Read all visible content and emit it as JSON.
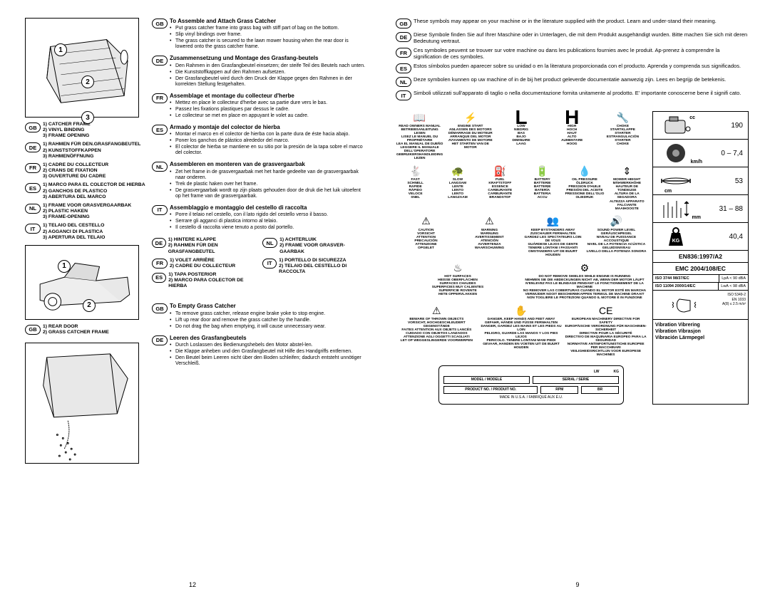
{
  "left": {
    "diagram1_nums": [
      "1",
      "2",
      "3"
    ],
    "parts": {
      "gb": [
        "1) CATCHER FRAME",
        "2) VINYL BINDING",
        "3) FRAME OPENING"
      ],
      "de": [
        "1) RAHMEN FÜR DEN.GRASFANGBEUTEL",
        "2) KUNSTSTOFFKAPPEN",
        "3) RAHMENÖFFNUNG"
      ],
      "fr": [
        "1) CADRE DU COLLECTEUR",
        "2) CRANS DE FIXATION",
        "3) OUVERTURE DU CADRE"
      ],
      "es": [
        "1) MARCO PARA EL COLECTOR DE HIERBA",
        "2) GANCHOS DE PLASTICO",
        "3) ABERTURA DEL MARCO"
      ],
      "nl": [
        "1) FRAME VOOR GRASVERGAARBAK",
        "2) PLASTIC HAKEN",
        "3) FRAME-OPENING"
      ],
      "it": [
        "1) TELAIO DEL CESTELLO",
        "2) AGGANCI DI PLASTICA",
        "3) APERTURA DEL TELAIO"
      ]
    },
    "diagram2_nums": [
      "1",
      "2"
    ],
    "parts2": {
      "gb": [
        "1) REAR DOOR",
        "2) GRASS CATCHER FRAME"
      ],
      "de": [
        "1) HINTERE KLAPPE",
        "2) RAHMEN FÜR DEN GRASFANGBEUTEL"
      ],
      "fr": [
        "1) VOLET ARRIÈRE",
        "2) CADRE DU COLLECTEUR"
      ],
      "es": [
        "1) TAPA POSTERIOR",
        "2) MARCO PARA COLECTOR DE HIERBA"
      ],
      "nl": [
        "1) ACHTERLUIK",
        "2) FRAME VOOR GRASVER-GAARBAK"
      ],
      "it": [
        "1) PORTELLO DI SICUREZZA",
        "2) TELAIO DEL CESTELLO DI RACCOLTA"
      ]
    },
    "assemble": {
      "gb": {
        "title": "To Assemble and Attach Grass Catcher",
        "b": [
          "Put grass catcher frame into grass bag with stiff part of bag on the bottom.",
          "Slip vinyl bindings over frame.",
          "The grass catcher is secured to the lawn mower housing when the rear door is lowered onto the grass catcher frame."
        ]
      },
      "de": {
        "title": "Zusammensetzung und Montage des Grasfang-beutels",
        "b": [
          "Den Rahmen in den Grasfangbeutel einsetzen; der steife Teil des Beutels nach unten.",
          "Die Kunststoffkappen auf den Rahmen aufsetzen.",
          "Der Grasfangbeutel wird durch den Druck der Klappe gegen den Rahmen in der korrekten Stellung festgehalten."
        ]
      },
      "fr": {
        "title": "Assemblage et montage du collecteur d'herbe",
        "b": [
          "Mettez en place le collecteur d'herbe avec sa partie dure vers le bas.",
          "Passez les fixations plastiques par dessus le cadre.",
          "Le collecteur se met en place en appuyant le volet au cadre."
        ]
      },
      "es": {
        "title": "Armado y montaje del colector de hierba",
        "b": [
          "Montar el marco en el colector de hierba con la parte dura de éste hacia abajo.",
          "Poner los ganchos de plástico alrededor del marco.",
          "El colector de hierba se mantiene en su sitio por la presión de la tapa sobre el marco del colector."
        ]
      },
      "nl": {
        "title": "Assembleren en monteren van de grasvergaarbak",
        "b": [
          "Zet het frame in de grasvergaarbak met het harde gedeelte van de grasvergaarbak naar onderen.",
          "Trek de plastic haken over het frame.",
          "De grasvergaarbak wordt op zijn plaats gehouden door de druk die het luik uitoefent op het frame van de grasvergaarbak."
        ]
      },
      "it": {
        "title": "Assemblaggio e montaggio del cestello di raccolta",
        "b": [
          "Porre il telaio nel cestello, con il lato rigido del cestello verso il basso.",
          "Serrare gli agganci di plastica intorno al telaio.",
          "Il cestello di raccolta viene tenuto a posto dal portello."
        ]
      }
    },
    "empty": {
      "gb": {
        "title": "To Empty Grass Catcher",
        "b": [
          "To remove grass catcher, release engine brake yoke to stop engine.",
          "Lift up rear door and remove the grass catcher by the handle.",
          "Do not drag the bag when emptying, it will cause unnecessary wear."
        ]
      },
      "de": {
        "title": "Leeren des Grasfangbeutels",
        "b": [
          "Durch Loslassen des Bedienungshebels den Motor abstel-len.",
          "Die Klappe anheben und den Grasfangbeutel mit Hilfe des Handgriffs entfernen.",
          "Den Beutel beim Leeren nicht über den Boden schleifen; dadurch entsteht unnötiger Verschleiß."
        ]
      }
    },
    "diagram3_present": true,
    "page_num": "12"
  },
  "right": {
    "intro": {
      "gb": "These symbols may appear on your machine or in the literature supplied with the product. Learn and under-stand their meaning.",
      "de": "Diese Symbole finden Sie auf Ihrer Maschine oder in Unterlagen, die mit dem Produkt ausgehändigt wurden. Bitte machen Sie sich mit deren Bedeutung vertraut.",
      "fr": "Ces symboles peuvent se trouver sur votre machine ou dans les publications fournies avec le produit. Ap-prenez à comprendre la signification de ces symboles.",
      "es": "Estos símbolos pueden aparecer sobre su unidad o en la literatura proporcionada con el producto. Aprenda y comprenda sus significados.",
      "nl": "Deze symbolen kunnen op uw machine of in de bij het product geleverde documentatie aanwezig zijn. Lees en begrijp de betekenis.",
      "it": "Simboli utilizzati sull'apparato di taglio o nella documentazione fornita unitamente al prodotto. E' importante conoscerne bene il signifi cato."
    },
    "sym_row1": [
      {
        "icon": "📖",
        "l": [
          "READ OWNERS MANUAL",
          "BETRIEBSANLEITUNG LESEN",
          "LISEZ LE MANUEL DU PROPRIÉTAIRE",
          "LEA EL MANUAL DE DUEÑO",
          "LEGGERE IL MANUALE DELL'OPERATORE",
          "GEBRUIKERSHANDLEIDING LEZEN"
        ]
      },
      {
        "icon": "⚡",
        "l": [
          "ENGINE START",
          "ANLASSEN DES MOTORS",
          "DÉMARRAGE DU MOTEUR",
          "ARRANQUE DEL MOTOR",
          "AVVIAMENTO DE MOTORE",
          "HET STARTEN VAN DE MOTOR"
        ]
      },
      {
        "icon": "L",
        "big": true,
        "l": [
          "LOW",
          "NIEDRIG",
          "BAS",
          "BAJO",
          "DIMINUIRE",
          "LAAG"
        ]
      },
      {
        "icon": "H",
        "big": true,
        "l": [
          "HIGH",
          "HOCH",
          "HAUT",
          "ALTO",
          "AUMENTARE",
          "HOOG"
        ]
      },
      {
        "icon": "🔧",
        "l": [
          "CHOKE",
          "STARTKLAPPE",
          "STARTER",
          "ESTRANGULACIÓN",
          "STARTER",
          "CHOKE"
        ]
      }
    ],
    "sym_row2": [
      {
        "icon": "🐇",
        "l": [
          "FAST",
          "SCHNELL",
          "RAPIDE",
          "RÁPIDO",
          "VELOCE",
          "SNEL"
        ]
      },
      {
        "icon": "🐢",
        "l": [
          "SLOW",
          "LANGSAM",
          "LENTE",
          "LENTO",
          "LENTO",
          "LANGZAAM"
        ]
      },
      {
        "icon": "⛽",
        "l": [
          "FUEL",
          "KRAFTSTOFF",
          "ESSENCE",
          "CARBURANTE",
          "CARBURANTE",
          "BRANDSTOF"
        ]
      },
      {
        "icon": "🔋",
        "l": [
          "BATTERY",
          "BATTERIE",
          "BATTERIE",
          "BATERÍA",
          "BATTERIA",
          "ACCU"
        ]
      },
      {
        "icon": "💧",
        "l": [
          "OIL PRESSURE",
          "ÖLDRUCK",
          "PRESSION D'HUILE",
          "PRESIÓN DEL ACEITE",
          "PRESSIONE DELL'OLIO",
          "OLIEDRUK"
        ]
      },
      {
        "icon": "⇕",
        "l": [
          "MOWER HEIGHT",
          "MÄHWERKHÖHE",
          "HAUTEUR DE TONDEUSE",
          "ALTURA DE LA SEGADORA",
          "ALTEZZA APPARATO",
          "FALCIANTE MAAIHOOGTE"
        ]
      }
    ],
    "sym_row3": [
      {
        "icon": "⚠",
        "l": [
          "CAUTION",
          "VORSICHT",
          "ATTENTION",
          "PRECAUCIÓN",
          "ATTENZIONE",
          "OPGELET"
        ]
      },
      {
        "icon": "⚠",
        "l": [
          "WARNING",
          "WARNUNG",
          "AVERTISSEMENT",
          "ATENCIÓN",
          "AVVERTENZA",
          "WAARSCHUWING"
        ]
      },
      {
        "icon": "👥",
        "l": [
          "KEEP BYSTANDERS AWAY",
          "ZUSCHAUER FERNHALTEN",
          "GARDEZ LES SPECTATEURS LOIN DE VOUS",
          "GUÁRDESE LEJOS DE GENTE",
          "TENERE LONTANI I PASSANTI",
          "OMSTANDERS UIT DE BUURT HOUDEN"
        ]
      },
      {
        "icon": "🔊",
        "l": [
          "SOUND POWER LEVEL",
          "GERÄUSCHPEGEL",
          "NIVEAU DE PUISSANCE ACCOUSTIQUE",
          "NIVEL DE LA POTENCIA ACÚSTICA",
          "GELUIDSNIVEAU",
          "LIVELLO DELLA POTENZA SONORA"
        ]
      }
    ],
    "sym_row4": [
      {
        "icon": "♨",
        "l": [
          "HOT SURFACES",
          "HEISSE OBERFLÄCHEN",
          "SURFACES CHAUDES",
          "SUPERFICIES MUY CALIENTES",
          "SUPERFICIE ROVENTE",
          "HETE OPPERVLAKKEN"
        ]
      },
      {
        "icon": "⚙",
        "l": [
          "DO NOT REMOVE SHIELDS WHILE ENGINE IS RUNNING",
          "NEHMEN SIE DIE ABDECKUNGEN NICHT AB, WENN DER MOTOR LÄUFT",
          "N'ENLEVEZ PAS LE BLINDAGE PENDANT LE FONCTIONNEMENT DE LA MACHINE",
          "NO REMOVER LAS COBERTURAS CUANDO EL MOTOR ESTÉ EN MARCHA",
          "VERWIJDER NOOIT BESCHERMKAPPEN TERWIJL DE MACHINE DRAAIT",
          "NON TOGLIERE LE PROTEZIONI QUANDO IL MOTORE È IN FUNZIONE"
        ]
      }
    ],
    "sym_row5": [
      {
        "icon": "⚠",
        "l": [
          "BEWARE OF THROWN OBJECTS",
          "VORSICHT, HOCHGESCHLEUDERT GEGENSTÄNDE",
          "FAITES ATTENTION AUX OBJETS LANCÉS",
          "CUIDADO CON OBJETOS LANZADOS",
          "ATTENZIONE AGLI OGGETTI SCAGLIATI",
          "LET OP WEGGESLINGERDE VOORWERPEN"
        ]
      },
      {
        "icon": "✋",
        "l": [
          "DANGER, KEEP HANDS AND FEET AWAY",
          "GEFAHR, HÄNDE UND FÜSSE FERNHALTEN",
          "DANGER, GARDEZ LES MAINS ET LES PIEDS AU LOIN",
          "PELIGRO, GUARDE LAS MANOS Y LOS PIES LEJOS",
          "PERICOLO. TENERE LONTANI MANI PIEDI",
          "GEVAAR, HANDEN EN VOETEN UIT DE BUURT HOUDEN"
        ]
      },
      {
        "icon": "CE",
        "l": [
          "EUROPEAN MACHINERY DIRECTIVE FOR SAFETY",
          "EUROPÄISCHE VERORDNUNG FÜR MASCHINEN-SICHERHEIT",
          "DIRECTIVE POUR LA SÉCURITÉ",
          "DIRECTIVO DE MAQUINARIA EUROPEO PARA LA SEGURIDAD",
          "NORMATIVE ANTINFORTUNISTICHE EUROPEE PER MACCHINARI",
          "VEILIGHEIDSRICHTLIJN VOOR EUROPESE MACHINES"
        ]
      }
    ],
    "specs": [
      {
        "unit": "cc",
        "val": "190",
        "icon": "engine"
      },
      {
        "unit": "km/h",
        "val": "0 – 7,4",
        "icon": "wheel"
      },
      {
        "unit": "cm",
        "val": "53",
        "icon": "blade"
      },
      {
        "unit": "mm",
        "val": "31 – 88",
        "icon": "grass"
      },
      {
        "unit": "KG",
        "val": "40,4",
        "icon": "weight"
      }
    ],
    "standards": [
      "EN836:1997/A2",
      "EMC 2004/108/EC"
    ],
    "iso": [
      {
        "std": "ISO 3744  98/37/EC",
        "val": "LpA < 90 dBA"
      },
      {
        "std": "ISO 11094 2000/14/EC",
        "val": "LwA < 98 dBA"
      }
    ],
    "cert": {
      "iso": "ISO 5349-2",
      "en": "EN 1033",
      "a": "A(8) ≤ 2.5 m/s²"
    },
    "vibration": [
      "Vibration  Vibrering",
      "Vibration  Vibrasjon",
      "Vibración Lärmpegel"
    ],
    "label": {
      "fields1": [
        "MODEL / MODELE",
        "SERIAL / SERIE"
      ],
      "fields2": [
        "PRODUCT NO. / PRODUIT NO.",
        "RPM",
        "BR"
      ],
      "lw": "LW",
      "kg": "KG",
      "made": "MADE IN U.S.A. / FABRIQUÉ AUX É.U."
    },
    "page_num": "9"
  }
}
